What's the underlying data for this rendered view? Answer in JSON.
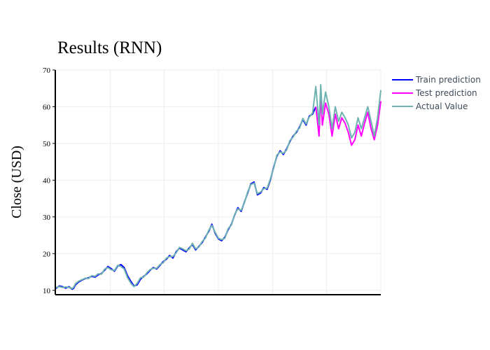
{
  "chart_data": {
    "type": "line",
    "title": "Results (RNN)",
    "xlabel": "",
    "ylabel": "Close (USD)",
    "ylim": [
      9,
      70
    ],
    "xlim": [
      0,
      1
    ],
    "y_ticks": [
      10,
      20,
      30,
      40,
      50,
      60,
      70
    ],
    "grid": true,
    "legend_position": "top-right",
    "series": [
      {
        "name": "Train prediction",
        "color": "#0000ff",
        "x": [
          0,
          0.01,
          0.02,
          0.03,
          0.04,
          0.05,
          0.055,
          0.06,
          0.07,
          0.08,
          0.09,
          0.1,
          0.11,
          0.12,
          0.13,
          0.14,
          0.15,
          0.16,
          0.17,
          0.18,
          0.19,
          0.2,
          0.21,
          0.22,
          0.23,
          0.24,
          0.25,
          0.26,
          0.27,
          0.28,
          0.29,
          0.3,
          0.31,
          0.32,
          0.33,
          0.34,
          0.35,
          0.36,
          0.37,
          0.38,
          0.39,
          0.4,
          0.41,
          0.42,
          0.43,
          0.44,
          0.45,
          0.46,
          0.47,
          0.48,
          0.49,
          0.5,
          0.51,
          0.52,
          0.53,
          0.54,
          0.55,
          0.56,
          0.57,
          0.58,
          0.59,
          0.6,
          0.61,
          0.62,
          0.63,
          0.64,
          0.65,
          0.66,
          0.67,
          0.68,
          0.69,
          0.7,
          0.71,
          0.72,
          0.73,
          0.74,
          0.75,
          0.76,
          0.77,
          0.78,
          0.79,
          0.8
        ],
        "y": [
          10.5,
          11.2,
          11.0,
          10.6,
          11.0,
          10.3,
          10.6,
          11.5,
          12.3,
          12.8,
          13.2,
          13.4,
          13.8,
          13.6,
          14.2,
          14.6,
          15.5,
          16.5,
          15.9,
          15.2,
          16.6,
          17.0,
          16.2,
          14.0,
          12.5,
          11.2,
          11.5,
          13.0,
          13.8,
          14.5,
          15.5,
          16.2,
          15.8,
          16.8,
          17.8,
          18.5,
          19.5,
          18.8,
          20.5,
          21.5,
          21.0,
          20.5,
          21.5,
          22.5,
          21.0,
          22.0,
          23.0,
          24.5,
          26.0,
          28.0,
          25.5,
          24.0,
          23.5,
          24.5,
          26.5,
          28.0,
          30.5,
          32.5,
          31.5,
          34.0,
          36.5,
          39.0,
          39.5,
          36.0,
          36.5,
          38.0,
          37.5,
          40.0,
          43.5,
          46.5,
          48.0,
          47.0,
          48.5,
          50.5,
          52.0,
          53.0,
          54.5,
          56.5,
          55.0,
          57.5,
          58.0,
          60.0
        ]
      },
      {
        "name": "Test prediction",
        "color": "#ff00ff",
        "x": [
          0.8,
          0.81,
          0.815,
          0.82,
          0.83,
          0.84,
          0.85,
          0.86,
          0.87,
          0.88,
          0.89,
          0.9,
          0.91,
          0.92,
          0.93,
          0.94,
          0.95,
          0.96,
          0.97,
          0.98,
          0.99,
          1.0
        ],
        "y": [
          60.0,
          52.0,
          63.0,
          55.0,
          61.0,
          58.0,
          52.0,
          58.0,
          54.0,
          57.0,
          55.5,
          53.0,
          49.5,
          51.0,
          55.0,
          52.0,
          55.5,
          58.5,
          54.0,
          51.0,
          55.0,
          61.5
        ]
      },
      {
        "name": "Actual Value",
        "color": "#6fb3b1",
        "x": [
          0,
          0.01,
          0.02,
          0.03,
          0.04,
          0.05,
          0.055,
          0.06,
          0.07,
          0.08,
          0.09,
          0.1,
          0.11,
          0.12,
          0.13,
          0.14,
          0.15,
          0.16,
          0.17,
          0.18,
          0.19,
          0.2,
          0.21,
          0.22,
          0.23,
          0.24,
          0.25,
          0.26,
          0.27,
          0.28,
          0.29,
          0.3,
          0.31,
          0.32,
          0.33,
          0.34,
          0.35,
          0.36,
          0.37,
          0.38,
          0.39,
          0.4,
          0.41,
          0.42,
          0.43,
          0.44,
          0.45,
          0.46,
          0.47,
          0.48,
          0.49,
          0.5,
          0.51,
          0.52,
          0.53,
          0.54,
          0.55,
          0.56,
          0.57,
          0.58,
          0.59,
          0.6,
          0.61,
          0.62,
          0.63,
          0.64,
          0.65,
          0.66,
          0.67,
          0.68,
          0.69,
          0.7,
          0.71,
          0.72,
          0.73,
          0.74,
          0.75,
          0.76,
          0.77,
          0.78,
          0.79,
          0.8,
          0.81,
          0.815,
          0.82,
          0.83,
          0.84,
          0.85,
          0.86,
          0.87,
          0.88,
          0.89,
          0.9,
          0.91,
          0.92,
          0.93,
          0.94,
          0.95,
          0.96,
          0.97,
          0.98,
          0.99,
          1.0
        ],
        "y": [
          10.8,
          11.0,
          10.8,
          10.9,
          10.8,
          10.5,
          10.9,
          11.8,
          12.5,
          12.9,
          13.3,
          13.2,
          14.0,
          13.8,
          14.5,
          14.4,
          15.8,
          16.2,
          15.6,
          15.4,
          16.8,
          16.5,
          15.8,
          13.5,
          12.0,
          11.0,
          11.9,
          13.4,
          13.6,
          14.8,
          15.7,
          16.0,
          16.0,
          17.0,
          17.5,
          18.8,
          19.2,
          19.2,
          20.2,
          21.7,
          21.3,
          20.8,
          21.2,
          22.8,
          21.3,
          21.8,
          23.3,
          24.2,
          26.3,
          27.7,
          25.8,
          24.2,
          23.8,
          24.2,
          26.8,
          27.8,
          30.7,
          32.2,
          31.8,
          33.8,
          36.8,
          38.8,
          39.2,
          36.3,
          36.8,
          37.7,
          37.8,
          40.3,
          43.2,
          46.8,
          47.7,
          47.3,
          48.2,
          50.8,
          51.7,
          53.3,
          54.2,
          56.8,
          55.3,
          57.2,
          58.3,
          65.5,
          55.0,
          66.0,
          58.0,
          64.0,
          60.0,
          54.0,
          60.0,
          56.0,
          58.5,
          57.0,
          55.0,
          51.5,
          53.0,
          57.0,
          54.0,
          57.0,
          60.0,
          56.0,
          52.0,
          57.0,
          64.5
        ]
      }
    ]
  }
}
